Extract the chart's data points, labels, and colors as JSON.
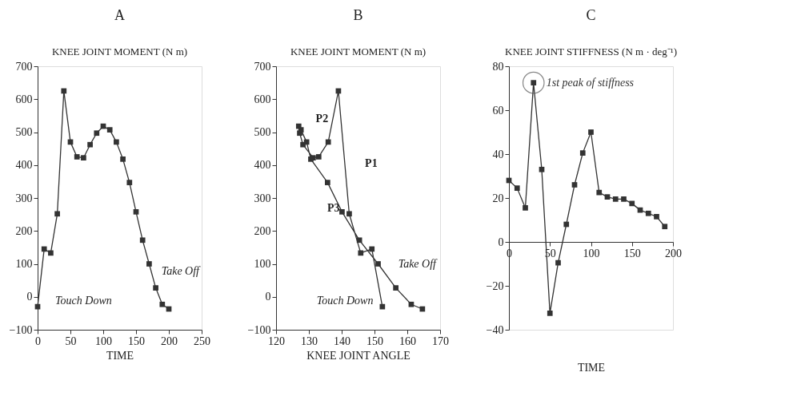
{
  "chart_data": [
    {
      "type": "line",
      "title": "A",
      "subtitle": "KNEE JOINT MOMENT (N m)",
      "xlabel": "TIME",
      "marker": "square",
      "grid": false,
      "x": [
        0,
        10,
        20,
        30,
        40,
        50,
        60,
        70,
        80,
        90,
        100,
        110,
        120,
        130,
        140,
        150,
        160,
        170,
        180,
        190,
        200
      ],
      "series": [
        {
          "color": "#333333",
          "values": [
            -30,
            145,
            133,
            252,
            625,
            470,
            425,
            422,
            462,
            497,
            518,
            507,
            470,
            418,
            347,
            258,
            172,
            100,
            27,
            -23,
            -37
          ]
        }
      ],
      "xlim": [
        0,
        250
      ],
      "xticks": [
        0,
        50,
        100,
        150,
        200,
        250
      ],
      "ylim": [
        -100,
        700
      ],
      "yticks": [
        -100,
        0,
        100,
        200,
        300,
        400,
        500,
        600,
        700
      ],
      "annotations": [
        "Touch Down",
        "Take Off"
      ]
    },
    {
      "type": "line",
      "title": "B",
      "subtitle": "KNEE JOINT MOMENT (N m)",
      "xlabel": "KNEE       JOINT       ANGLE",
      "marker": "square",
      "grid": false,
      "series": [
        {
          "color": "#333333",
          "x": [
            152.4,
            149.2,
            145.8,
            142.3,
            139.0,
            135.9,
            133.0,
            131.3,
            128.2,
            127.2,
            126.9,
            127.6,
            129.3,
            130.6,
            135.7,
            140.1,
            145.4,
            151.1,
            156.5,
            161.2,
            164.6
          ],
          "values": [
            -30,
            145,
            133,
            252,
            625,
            470,
            425,
            422,
            462,
            497,
            518,
            507,
            470,
            418,
            347,
            258,
            172,
            100,
            27,
            -23,
            -37
          ]
        }
      ],
      "xlim": [
        120,
        170
      ],
      "xticks": [
        120,
        130,
        140,
        150,
        160,
        170
      ],
      "ylim": [
        -100,
        700
      ],
      "yticks": [
        -100,
        0,
        100,
        200,
        300,
        400,
        500,
        600,
        700
      ],
      "annotations": [
        "P2",
        "P1",
        "P3",
        "Touch Down",
        "Take Off"
      ]
    },
    {
      "type": "line",
      "title": "C",
      "subtitle": "KNEE JOINT STIFFNESS (N m · deg⁻¹)",
      "xlabel": "TIME",
      "marker": "square",
      "grid": false,
      "x": [
        0,
        10,
        20,
        30,
        40,
        50,
        60,
        70,
        80,
        90,
        100,
        110,
        120,
        130,
        140,
        150,
        160,
        170,
        180,
        190
      ],
      "series": [
        {
          "color": "#333333",
          "values": [
            28,
            24.5,
            15.5,
            72.5,
            33,
            -32.5,
            -9.5,
            8,
            26,
            40.5,
            50,
            22.5,
            20.5,
            19.5,
            19.5,
            17.5,
            14.5,
            13,
            11.5,
            7
          ]
        }
      ],
      "xlim": [
        0,
        200
      ],
      "xticks": [
        0,
        50,
        100,
        150,
        200
      ],
      "ylim": [
        -40,
        80
      ],
      "yticks": [
        -40,
        -20,
        0,
        20,
        40,
        60,
        80
      ],
      "annotations": [
        {
          "text": "1st peak of stiffness",
          "x": 30,
          "y": 72.5
        }
      ]
    }
  ]
}
